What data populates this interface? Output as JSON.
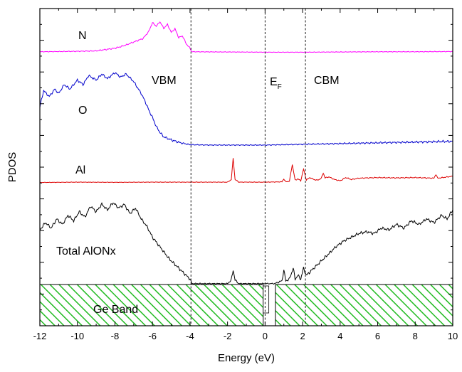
{
  "chart_data": {
    "type": "line",
    "title": "",
    "xlabel": "Energy (eV)",
    "ylabel": "PDOS",
    "xlim": [
      -12,
      10
    ],
    "x_ticks": [
      "-12",
      "-10",
      "-8",
      "-6",
      "-4",
      "-2",
      "0",
      "2",
      "4",
      "6",
      "8",
      "10"
    ],
    "y_ticks_labeled": false,
    "grid": false,
    "legend": "none",
    "reference_lines": [
      {
        "name": "VBM",
        "x": -3.95
      },
      {
        "name": "EF",
        "x": 0.0
      },
      {
        "name": "CBM",
        "x": 2.15
      }
    ],
    "annotations": {
      "vbm": "VBM",
      "ef_main": "E",
      "ef_sub": "F",
      "cbm": "CBM",
      "n": "N",
      "o": "O",
      "al": "Al",
      "total": "Total AlONx",
      "ge_band": "Ge Band"
    },
    "ge_band": {
      "regions": [
        [
          -12,
          -0.1
        ],
        [
          0.55,
          10
        ]
      ],
      "gap_marker": [
        -0.1,
        0.2
      ],
      "color": "#22bb22"
    },
    "series": [
      {
        "label": "N",
        "color": "#ff00ff",
        "x": [
          -12,
          -11,
          -10,
          -9,
          -8.5,
          -8,
          -7.5,
          -7,
          -6.5,
          -6.2,
          -6,
          -5.8,
          -5.6,
          -5.4,
          -5.2,
          -5,
          -4.8,
          -4.6,
          -4.4,
          -4.2,
          -4,
          -3.9,
          -2,
          0,
          2,
          4,
          6,
          8,
          10
        ],
        "y": [
          0.2,
          0.25,
          0.3,
          0.4,
          0.7,
          1.0,
          1.6,
          2.4,
          3.2,
          4.8,
          6.8,
          6.0,
          7.0,
          5.5,
          6.4,
          4.6,
          5.4,
          3.4,
          3.8,
          2.0,
          1.0,
          0.2,
          0.15,
          0.1,
          0.1,
          0.15,
          0.2,
          0.2,
          0.25
        ]
      },
      {
        "label": "O",
        "color": "#0000cc",
        "x": [
          -12,
          -11.8,
          -11.5,
          -11.2,
          -11,
          -10.7,
          -10.4,
          -10,
          -9.7,
          -9.4,
          -9,
          -8.7,
          -8.4,
          -8,
          -7.7,
          -7.4,
          -7,
          -6.8,
          -6.6,
          -6.4,
          -6.2,
          -6,
          -5.8,
          -5.6,
          -5.4,
          -5,
          -4.5,
          -4,
          -3,
          -2,
          0,
          2,
          4,
          6,
          8,
          10
        ],
        "y": [
          5.2,
          7.4,
          6.6,
          7.6,
          7.0,
          8.2,
          7.6,
          8.8,
          8.2,
          9.4,
          8.8,
          9.6,
          9.0,
          9.8,
          9.2,
          9.6,
          8.6,
          7.8,
          7.0,
          6.0,
          4.8,
          3.8,
          2.6,
          1.8,
          1.2,
          0.8,
          0.4,
          0.15,
          0.1,
          0.1,
          0.1,
          0.2,
          0.3,
          0.4,
          0.5,
          0.6
        ]
      },
      {
        "label": "Al",
        "color": "#dd0000",
        "x": [
          -12,
          -10,
          -8,
          -6,
          -4,
          -2,
          -1.8,
          -1.7,
          -1.6,
          -1.4,
          0,
          0.9,
          1.0,
          1.1,
          1.3,
          1.45,
          1.6,
          1.75,
          1.9,
          2.05,
          2.2,
          2.4,
          2.6,
          2.8,
          3.0,
          3.1,
          3.2,
          3.4,
          3.7,
          4.0,
          4.3,
          4.6,
          5,
          6,
          7,
          8,
          9,
          9.1,
          9.2,
          10
        ],
        "y": [
          0.1,
          0.2,
          0.15,
          0.2,
          0.2,
          0.2,
          1.0,
          7.5,
          1.0,
          0.2,
          0.2,
          0.3,
          1.2,
          0.3,
          0.5,
          5.6,
          0.8,
          1.2,
          0.6,
          4.2,
          0.9,
          1.6,
          1.0,
          0.8,
          1.4,
          3.0,
          1.5,
          1.8,
          1.0,
          0.6,
          1.6,
          1.0,
          1.4,
          1.6,
          1.5,
          1.6,
          1.4,
          2.6,
          1.4,
          2.0
        ]
      },
      {
        "label": "Total AlONx",
        "color": "#000000",
        "x": [
          -12,
          -11.7,
          -11.4,
          -11.1,
          -10.8,
          -10.5,
          -10.2,
          -9.9,
          -9.6,
          -9.3,
          -9,
          -8.7,
          -8.4,
          -8.1,
          -7.8,
          -7.5,
          -7.2,
          -6.9,
          -6.6,
          -6.3,
          -6.0,
          -5.7,
          -5.4,
          -5.1,
          -4.8,
          -4.5,
          -4.2,
          -4.0,
          -3.9,
          -2,
          -1.8,
          -1.7,
          -1.6,
          -1.4,
          0.5,
          0.9,
          1.0,
          1.1,
          1.3,
          1.5,
          1.6,
          1.75,
          1.9,
          2.05,
          2.2,
          2.6,
          3.0,
          3.4,
          3.8,
          4.2,
          4.6,
          5.0,
          5.4,
          5.8,
          6.2,
          6.6,
          7.0,
          7.4,
          7.8,
          8.2,
          8.6,
          9.0,
          9.4,
          9.7,
          10
        ],
        "y": [
          6.0,
          6.8,
          6.2,
          7.2,
          6.6,
          7.6,
          7.0,
          8.0,
          7.4,
          8.6,
          8.0,
          8.8,
          8.2,
          9.0,
          8.4,
          8.8,
          7.8,
          8.4,
          7.2,
          6.4,
          5.2,
          4.4,
          3.6,
          2.8,
          2.2,
          1.6,
          1.0,
          0.6,
          0.1,
          0.1,
          0.5,
          1.6,
          0.5,
          0.1,
          0.1,
          0.4,
          1.6,
          0.4,
          0.6,
          1.8,
          0.6,
          1.0,
          0.6,
          1.8,
          1.0,
          1.8,
          2.6,
          3.4,
          4.2,
          4.8,
          5.2,
          5.6,
          5.8,
          5.6,
          6.2,
          6.0,
          6.6,
          6.2,
          7.0,
          6.6,
          7.2,
          6.8,
          7.6,
          7.2,
          8.2
        ]
      }
    ]
  }
}
